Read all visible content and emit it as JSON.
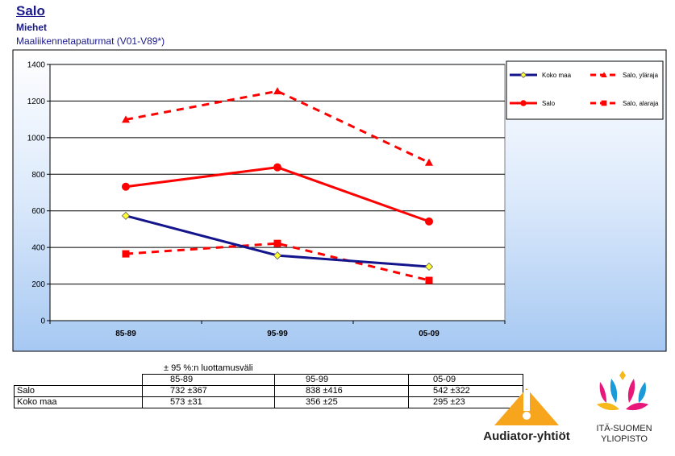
{
  "header": {
    "title": "Salo",
    "subtitle": "Miehet",
    "subtitle2": "Maaliikennetapaturmat (V01-V89*)"
  },
  "colors": {
    "koko_maa": "#14148c",
    "salo": "#ff0000",
    "grid": "#000000",
    "marker_yellow": "#ffff33"
  },
  "chart_data": {
    "type": "line",
    "categories": [
      "85-89",
      "95-99",
      "05-09"
    ],
    "ylim": [
      0,
      1400
    ],
    "yticks": [
      0,
      200,
      400,
      600,
      800,
      1000,
      1200,
      1400
    ],
    "grid": true,
    "legend_position": "top-right",
    "series": [
      {
        "name": "Koko maa",
        "values": [
          573,
          356,
          295
        ],
        "color": "#14148c",
        "dash": "solid",
        "marker": "diamond"
      },
      {
        "name": "Salo, yläraja",
        "values": [
          1099,
          1254,
          864
        ],
        "color": "#ff0000",
        "dash": "dashed",
        "marker": "triangle"
      },
      {
        "name": "Salo",
        "values": [
          732,
          838,
          542
        ],
        "color": "#ff0000",
        "dash": "solid",
        "marker": "circle"
      },
      {
        "name": "Salo, alaraja",
        "values": [
          365,
          422,
          220
        ],
        "color": "#ff0000",
        "dash": "dashed",
        "marker": "square"
      }
    ]
  },
  "table": {
    "caption": "± 95 %:n luottamusväli",
    "headers": [
      "85-89",
      "95-99",
      "05-09"
    ],
    "rows": [
      {
        "label": "Salo",
        "cells": [
          "732 ±367",
          "838 ±416",
          "542 ±322"
        ]
      },
      {
        "label": "Koko maa",
        "cells": [
          "573 ±31",
          "356 ±25",
          "295 ±23"
        ]
      }
    ]
  },
  "logos": {
    "audiator": "Audiator-yhtiöt",
    "uef_line1": "ITÄ-SUOMEN",
    "uef_line2": "YLIOPISTO"
  }
}
